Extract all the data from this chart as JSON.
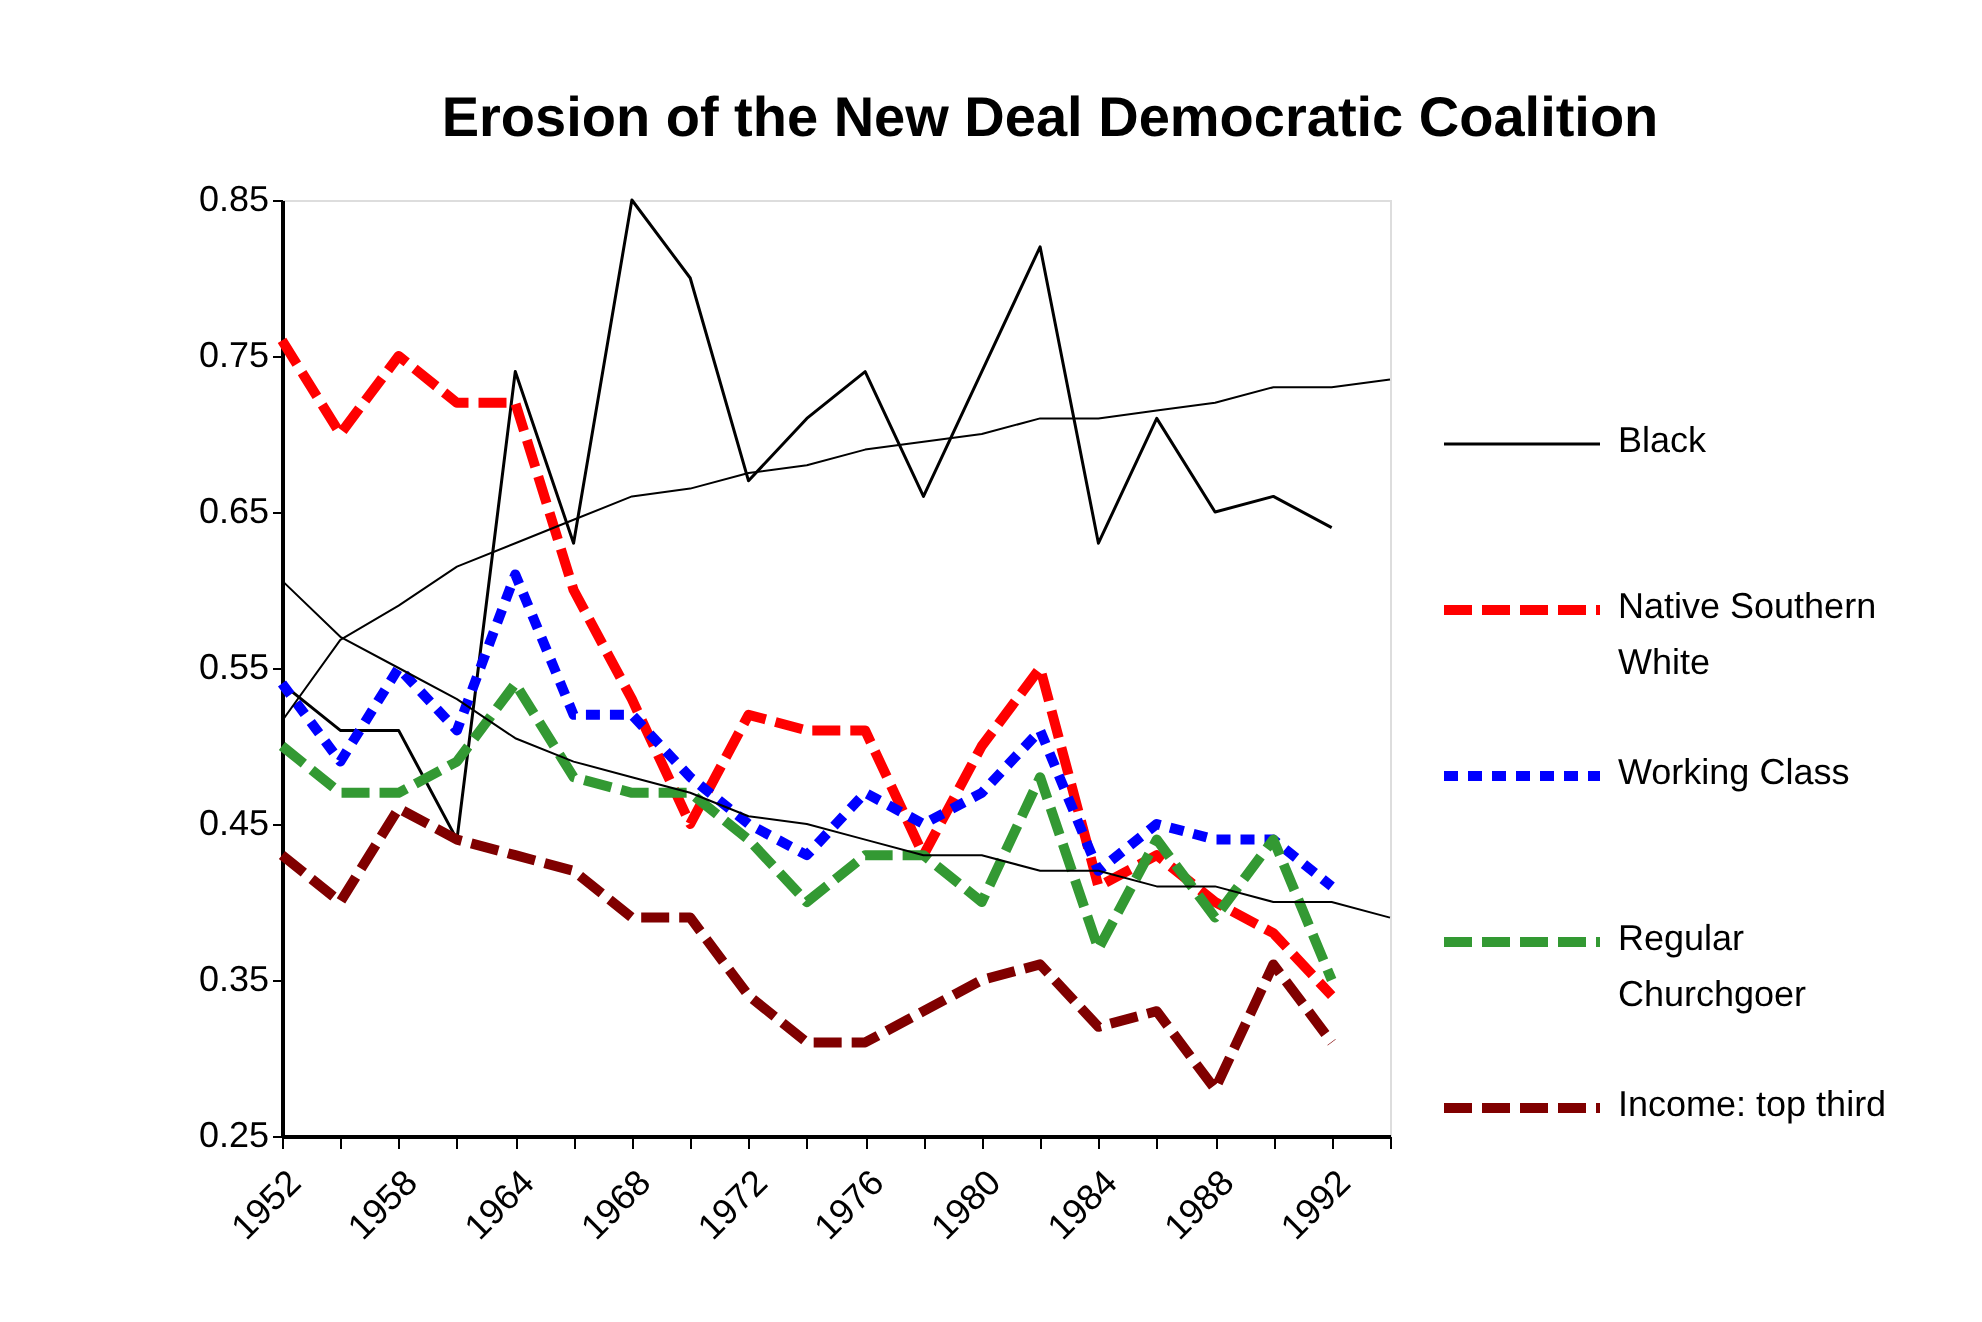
{
  "chart_data": {
    "type": "line",
    "title": "Erosion of the New Deal Democratic Coalition",
    "categories": [
      "1952",
      null,
      "1958",
      null,
      "1964",
      null,
      "1968",
      null,
      "1972",
      null,
      "1976",
      null,
      "1980",
      null,
      "1984",
      null,
      "1988",
      null,
      "1992",
      null
    ],
    "series": [
      {
        "name": "Black",
        "color": "#000000",
        "line_style": "solid",
        "values": [
          0.54,
          0.51,
          0.51,
          0.44,
          0.74,
          0.63,
          0.85,
          0.8,
          0.67,
          0.71,
          0.74,
          0.66,
          0.74,
          0.82,
          0.63,
          0.71,
          0.65,
          0.66,
          0.64,
          null
        ]
      },
      {
        "name": "Native Southern White",
        "color": "#ff0000",
        "line_style": "dashed",
        "values": [
          0.76,
          0.7,
          0.75,
          0.72,
          0.72,
          0.6,
          0.53,
          0.45,
          0.52,
          0.51,
          0.51,
          0.43,
          0.5,
          0.55,
          0.41,
          0.43,
          0.4,
          0.38,
          0.34,
          null
        ]
      },
      {
        "name": "Working Class",
        "color": "#0000ff",
        "line_style": "dotted",
        "values": [
          0.54,
          0.49,
          0.55,
          0.51,
          0.61,
          0.52,
          0.52,
          0.48,
          0.45,
          0.43,
          0.47,
          0.45,
          0.47,
          0.51,
          0.42,
          0.45,
          0.44,
          0.44,
          0.41,
          null
        ]
      },
      {
        "name": "Regular Churchgoer",
        "color": "#339933",
        "line_style": "dashed",
        "values": [
          0.5,
          0.47,
          0.47,
          0.49,
          0.54,
          0.48,
          0.47,
          0.47,
          0.44,
          0.4,
          0.43,
          0.43,
          0.4,
          0.48,
          0.37,
          0.44,
          0.39,
          0.44,
          0.35,
          null
        ]
      },
      {
        "name": "Income: top third",
        "color": "#800000",
        "line_style": "dashed",
        "values": [
          0.43,
          0.4,
          0.46,
          0.44,
          0.43,
          0.42,
          0.39,
          0.39,
          0.34,
          0.31,
          0.31,
          0.33,
          0.35,
          0.36,
          0.32,
          0.33,
          0.28,
          0.36,
          0.31,
          null
        ]
      },
      {
        "color": "#000000",
        "line_style": "solid",
        "values": [
          0.516,
          0.568,
          0.59,
          0.615,
          0.63,
          0.645,
          0.66,
          0.665,
          0.675,
          0.68,
          0.69,
          0.695,
          0.7,
          0.71,
          0.71,
          0.715,
          0.72,
          0.73,
          0.73,
          0.735
        ]
      },
      {
        "color": "#000000",
        "line_style": "solid",
        "values": [
          0.606,
          0.57,
          0.55,
          0.53,
          0.505,
          0.49,
          0.48,
          0.47,
          0.455,
          0.45,
          0.44,
          0.43,
          0.43,
          0.42,
          0.42,
          0.41,
          0.41,
          0.4,
          0.4,
          0.39
        ]
      }
    ],
    "ylim": [
      0.25,
      0.85
    ],
    "yticks": [
      0.25,
      0.35,
      0.45,
      0.55,
      0.65,
      0.75,
      0.85
    ],
    "legend": "right",
    "grid": false,
    "marker": "none"
  }
}
